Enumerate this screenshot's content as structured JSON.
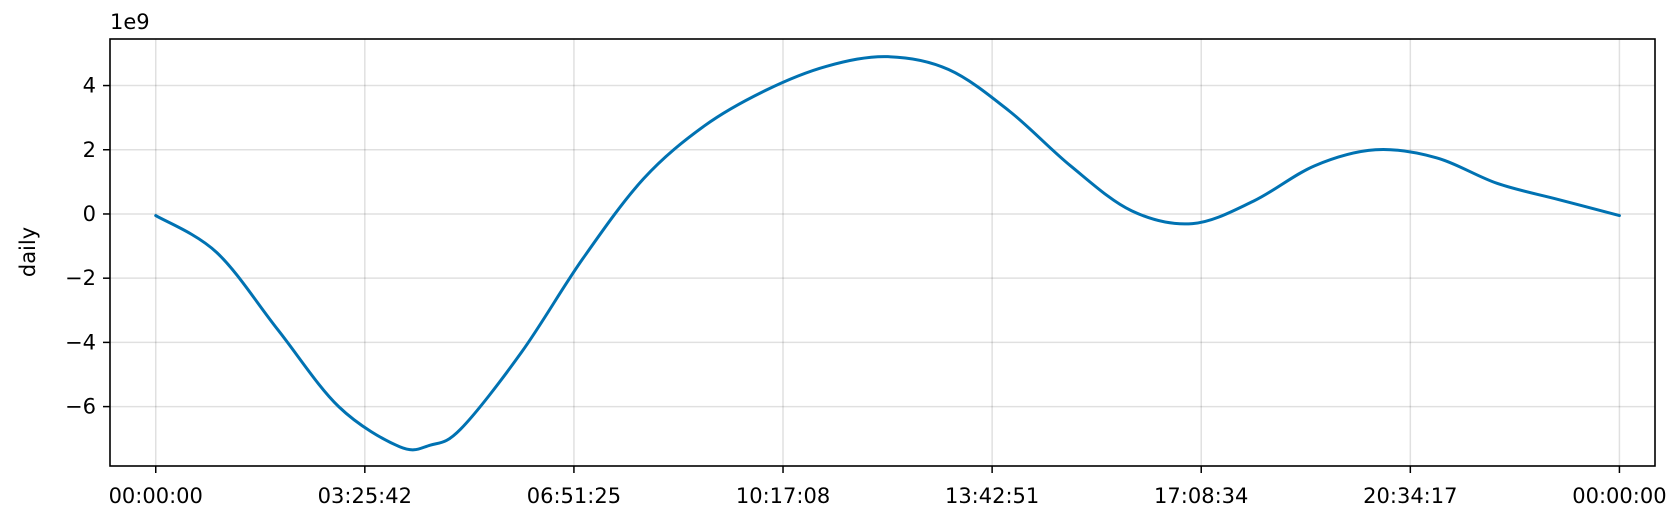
{
  "chart_data": {
    "type": "line",
    "title": "",
    "xlabel": "",
    "ylabel": "daily",
    "y_offset_label": "1e9",
    "y_scale": 1000000000,
    "xlim": [
      "23:15:00",
      "24:35:00"
    ],
    "ylim": [
      -7.85,
      5.45
    ],
    "grid": true,
    "line_color": "#0072B2",
    "x_ticks": [
      {
        "value": "00:00:00",
        "label": "00:00:00"
      },
      {
        "value": "03:25:42",
        "label": "03:25:42"
      },
      {
        "value": "06:51:25",
        "label": "06:51:25"
      },
      {
        "value": "10:17:08",
        "label": "10:17:08"
      },
      {
        "value": "13:42:51",
        "label": "13:42:51"
      },
      {
        "value": "17:08:34",
        "label": "17:08:34"
      },
      {
        "value": "20:34:17",
        "label": "20:34:17"
      },
      {
        "value": "24:00:00",
        "label": "00:00:00"
      }
    ],
    "y_ticks": [
      {
        "value": 4,
        "label": "4"
      },
      {
        "value": 2,
        "label": "2"
      },
      {
        "value": 0,
        "label": "0"
      },
      {
        "value": -2,
        "label": "−2"
      },
      {
        "value": -4,
        "label": "−4"
      },
      {
        "value": -6,
        "label": "−6"
      }
    ],
    "series": [
      {
        "x": [
          "00:00:00",
          "01:00:00",
          "02:00:00",
          "03:00:00",
          "04:00:00",
          "04:30:00",
          "05:00:00",
          "06:00:00",
          "07:00:00",
          "08:00:00",
          "09:00:00",
          "10:00:00",
          "11:00:00",
          "12:00:00",
          "13:00:00",
          "14:00:00",
          "15:00:00",
          "16:00:00",
          "17:00:00",
          "18:00:00",
          "19:00:00",
          "20:00:00",
          "21:00:00",
          "22:00:00",
          "23:00:00",
          "24:00:00"
        ],
        "y": [
          -0.05,
          -1.2,
          -3.6,
          -6.0,
          -7.25,
          -7.2,
          -6.7,
          -4.3,
          -1.4,
          1.1,
          2.75,
          3.85,
          4.6,
          4.9,
          4.5,
          3.2,
          1.5,
          0.1,
          -0.3,
          0.4,
          1.5,
          2.0,
          1.75,
          0.95,
          0.45,
          -0.05
        ]
      }
    ]
  }
}
